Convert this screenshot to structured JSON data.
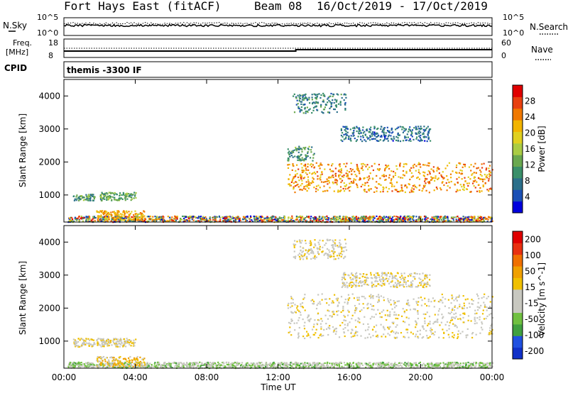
{
  "header": {
    "station": "Fort Hays East (fitACF)",
    "beam": "Beam 08",
    "dates": "16/Oct/2019 - 17/Oct/2019"
  },
  "strips": {
    "nsky_label": "N.Sky",
    "nsearch_label": "N.Search",
    "freq_label_1": "Freq.",
    "freq_label_2": "[MHz]",
    "nave_label": "Nave",
    "cpid_label": "CPID",
    "cpid_value": "themis -3300 IF",
    "n_ticks_left": [
      "10^5",
      "10^0"
    ],
    "n_ticks_right": [
      "10^5",
      "10^0"
    ],
    "freq_ticks": [
      "18",
      "8"
    ],
    "nave_ticks": [
      "60",
      "0"
    ]
  },
  "colors": {
    "power": [
      "#0000dd",
      "#1a4fb5",
      "#2b6f8a",
      "#3a8f6a",
      "#6aa84f",
      "#aacc44",
      "#e0d020",
      "#f2b400",
      "#f07800",
      "#e84010",
      "#e00000"
    ],
    "velocity": [
      "#1030c8",
      "#2050e0",
      "#40a040",
      "#70c040",
      "#c8c8c0",
      "#c8c8c0",
      "#f0c000",
      "#f0a000",
      "#f07000",
      "#e83010",
      "#e00000"
    ]
  },
  "chart_data": [
    {
      "type": "heatmap",
      "title": "",
      "xlabel": "",
      "ylabel": "Slant Range [km]",
      "ylim": [
        180,
        4500
      ],
      "xlim": [
        "00:00",
        "24:00"
      ],
      "yticks": [
        1000,
        2000,
        3000,
        4000
      ],
      "colorbar": {
        "label": "Power [dB]",
        "range": [
          0,
          32
        ],
        "ticks": [
          "4",
          "8",
          "12",
          "16",
          "20",
          "24",
          "28"
        ]
      },
      "regions": [
        {
          "t0": 0.2,
          "t1": 24.0,
          "r0": 200,
          "r1": 380,
          "value": "mixed"
        },
        {
          "t0": 0.5,
          "t1": 1.7,
          "r0": 850,
          "r1": 1050,
          "value": 10
        },
        {
          "t0": 2.0,
          "t1": 4.0,
          "r0": 850,
          "r1": 1100,
          "value": 12
        },
        {
          "t0": 1.8,
          "t1": 4.5,
          "r0": 250,
          "r1": 550,
          "value": 22
        },
        {
          "t0": 12.5,
          "t1": 24.0,
          "r0": 1100,
          "r1": 2000,
          "value": 24
        },
        {
          "t0": 12.5,
          "t1": 14.0,
          "r0": 2050,
          "r1": 2500,
          "value": 10
        },
        {
          "t0": 12.8,
          "t1": 15.8,
          "r0": 3500,
          "r1": 4100,
          "value": 8
        },
        {
          "t0": 15.5,
          "t1": 20.5,
          "r0": 2650,
          "r1": 3100,
          "value": 6
        }
      ]
    },
    {
      "type": "heatmap",
      "title": "",
      "xlabel": "Time UT",
      "ylabel": "Slant Range [km]",
      "ylim": [
        180,
        4500
      ],
      "xlim": [
        "00:00",
        "24:00"
      ],
      "xticks": [
        "00:00",
        "04:00",
        "08:00",
        "12:00",
        "16:00",
        "20:00",
        "00:00"
      ],
      "yticks": [
        1000,
        2000,
        3000,
        4000
      ],
      "colorbar": {
        "label": "Velocity [m s^-1]",
        "range": [
          -250,
          250
        ],
        "ticks": [
          "200",
          "100",
          "50",
          "15",
          "-15",
          "-50",
          "-100",
          "-200"
        ]
      },
      "regions": [
        {
          "t0": 0.2,
          "t1": 24.0,
          "r0": 200,
          "r1": 380,
          "value": -60
        },
        {
          "t0": 0.5,
          "t1": 4.0,
          "r0": 850,
          "r1": 1100,
          "value": 0
        },
        {
          "t0": 1.8,
          "t1": 4.5,
          "r0": 250,
          "r1": 550,
          "value": 40
        },
        {
          "t0": 12.5,
          "t1": 24.0,
          "r0": 1100,
          "r1": 2450,
          "value": 0
        },
        {
          "t0": 12.8,
          "t1": 15.8,
          "r0": 3500,
          "r1": 4100,
          "value": 0
        },
        {
          "t0": 15.5,
          "t1": 20.5,
          "r0": 2650,
          "r1": 3100,
          "value": 0
        }
      ]
    }
  ]
}
